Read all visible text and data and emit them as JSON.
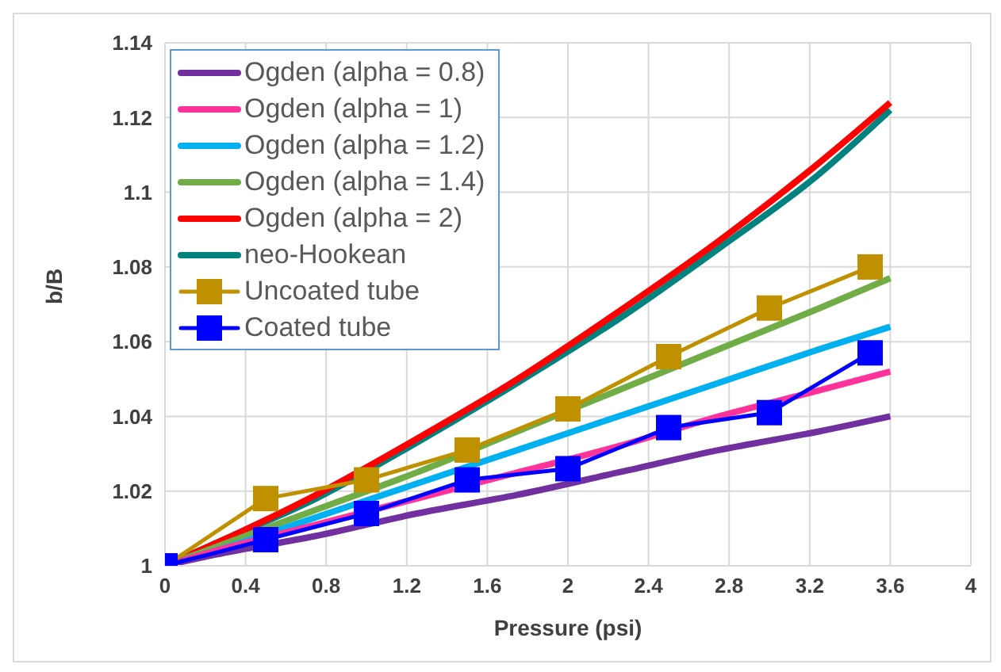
{
  "chart_data": {
    "type": "line",
    "xlabel": "Pressure (psi)",
    "ylabel": "b/B",
    "xlim": [
      0,
      4
    ],
    "xticks": [
      0,
      0.4,
      0.8,
      1.2,
      1.6,
      2,
      2.4,
      2.8,
      3.2,
      3.6,
      4
    ],
    "ylim": [
      1,
      1.14
    ],
    "yticks": [
      1,
      1.02,
      1.04,
      1.06,
      1.08,
      1.1,
      1.12,
      1.14
    ],
    "grid": true,
    "legend": "top left",
    "line_style": "solid",
    "series": [
      {
        "name": "Ogden (alpha = 0.8)",
        "color": "#7030a0",
        "marker": "none",
        "x": [
          0,
          0.25,
          0.75,
          1.25,
          1.75,
          2.25,
          2.75,
          3.25,
          3.6
        ],
        "values": [
          1,
          1.003,
          1.008,
          1.014,
          1.019,
          1.025,
          1.031,
          1.036,
          1.04
        ]
      },
      {
        "name": "Ogden (alpha = 1)",
        "color": "#ff3399",
        "marker": "none",
        "x": [
          0,
          0.25,
          0.75,
          1.25,
          1.75,
          2.25,
          2.75,
          3.25,
          3.6
        ],
        "values": [
          1,
          1.004,
          1.011,
          1.018,
          1.025,
          1.032,
          1.04,
          1.047,
          1.052
        ]
      },
      {
        "name": "Ogden (alpha = 1.2)",
        "color": "#00b0f0",
        "marker": "none",
        "x": [
          0,
          0.25,
          0.75,
          1.25,
          1.75,
          2.25,
          2.75,
          3.25,
          3.6
        ],
        "values": [
          1,
          1.004,
          1.013,
          1.022,
          1.031,
          1.04,
          1.049,
          1.058,
          1.064
        ]
      },
      {
        "name": "Ogden (alpha = 1.4)",
        "color": "#70ad47",
        "marker": "none",
        "x": [
          0,
          0.25,
          0.75,
          1.25,
          1.75,
          2.25,
          2.75,
          3.25,
          3.6
        ],
        "values": [
          1,
          1.005,
          1.015,
          1.025,
          1.036,
          1.047,
          1.058,
          1.069,
          1.077
        ]
      },
      {
        "name": "Ogden (alpha = 2)",
        "color": "#ff0000",
        "marker": "none",
        "x": [
          0,
          0.25,
          0.75,
          1.25,
          1.75,
          2.25,
          2.75,
          3.25,
          3.6
        ],
        "values": [
          1,
          1.006,
          1.019,
          1.034,
          1.05,
          1.068,
          1.087,
          1.108,
          1.124
        ]
      },
      {
        "name": "neo-Hookean",
        "color": "#00827f",
        "marker": "none",
        "x": [
          0,
          0.25,
          0.75,
          1.25,
          1.75,
          2.25,
          2.75,
          3.25,
          3.6
        ],
        "values": [
          1,
          1.006,
          1.018,
          1.033,
          1.049,
          1.066,
          1.085,
          1.105,
          1.122
        ]
      },
      {
        "name": "Uncoated tube",
        "color": "#bf9000",
        "marker": "square",
        "x": [
          0,
          0.5,
          1,
          1.5,
          2,
          2.5,
          3,
          3.5
        ],
        "values": [
          1,
          1.018,
          1.023,
          1.031,
          1.042,
          1.056,
          1.069,
          1.08
        ]
      },
      {
        "name": "Coated tube",
        "color": "#0000ff",
        "marker": "square",
        "x": [
          0,
          0.5,
          1,
          1.5,
          2,
          2.5,
          3,
          3.5
        ],
        "values": [
          1,
          1.007,
          1.014,
          1.023,
          1.026,
          1.037,
          1.041,
          1.057
        ]
      }
    ]
  }
}
